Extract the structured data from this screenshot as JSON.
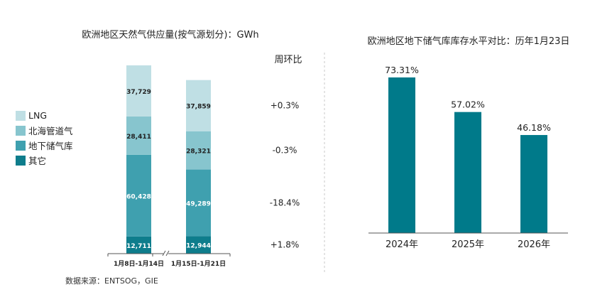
{
  "chart_data": [
    {
      "type": "bar",
      "stacked": true,
      "title": "欧洲地区天然气供应量(按气源划分)：GWh",
      "categories": [
        "1月8日-1月14日",
        "1月15日-1月21日"
      ],
      "series": [
        {
          "name": "其它",
          "values": [
            12711,
            12944
          ],
          "color": "#0e7d8c"
        },
        {
          "name": "地下储气库",
          "values": [
            60428,
            49289
          ],
          "color": "#3fa0af"
        },
        {
          "name": "北海管道气",
          "values": [
            28411,
            28321
          ],
          "color": "#87c5ce"
        },
        {
          "name": "LNG",
          "values": [
            37729,
            37859
          ],
          "color": "#bfdfe4"
        }
      ],
      "value_labels": [
        [
          "12,711",
          "60,428",
          "28,411",
          "37,729"
        ],
        [
          "12,944",
          "49,289",
          "28,321",
          "37,859"
        ]
      ],
      "wow_header": "周环比",
      "wow_changes": {
        "其它": "+1.8%",
        "地下储气库": "-18.4%",
        "北海管道气": "-0.3%",
        "LNG": "+0.3%"
      },
      "legend": [
        "LNG",
        "北海管道气",
        "地下储气库",
        "其它"
      ],
      "legend_position": "left",
      "axis_break": true
    },
    {
      "type": "bar",
      "title": "欧洲地区地下储气库库存水平对比：历年1月23日",
      "categories": [
        "2024年",
        "2025年",
        "2026年"
      ],
      "values": [
        73.31,
        57.02,
        46.18
      ],
      "value_labels": [
        "73.31%",
        "57.02%",
        "46.18%"
      ],
      "ylim": [
        0,
        80
      ],
      "color": "#007a8a"
    }
  ],
  "source_text": "数据来源：ENTSOG，GIE"
}
